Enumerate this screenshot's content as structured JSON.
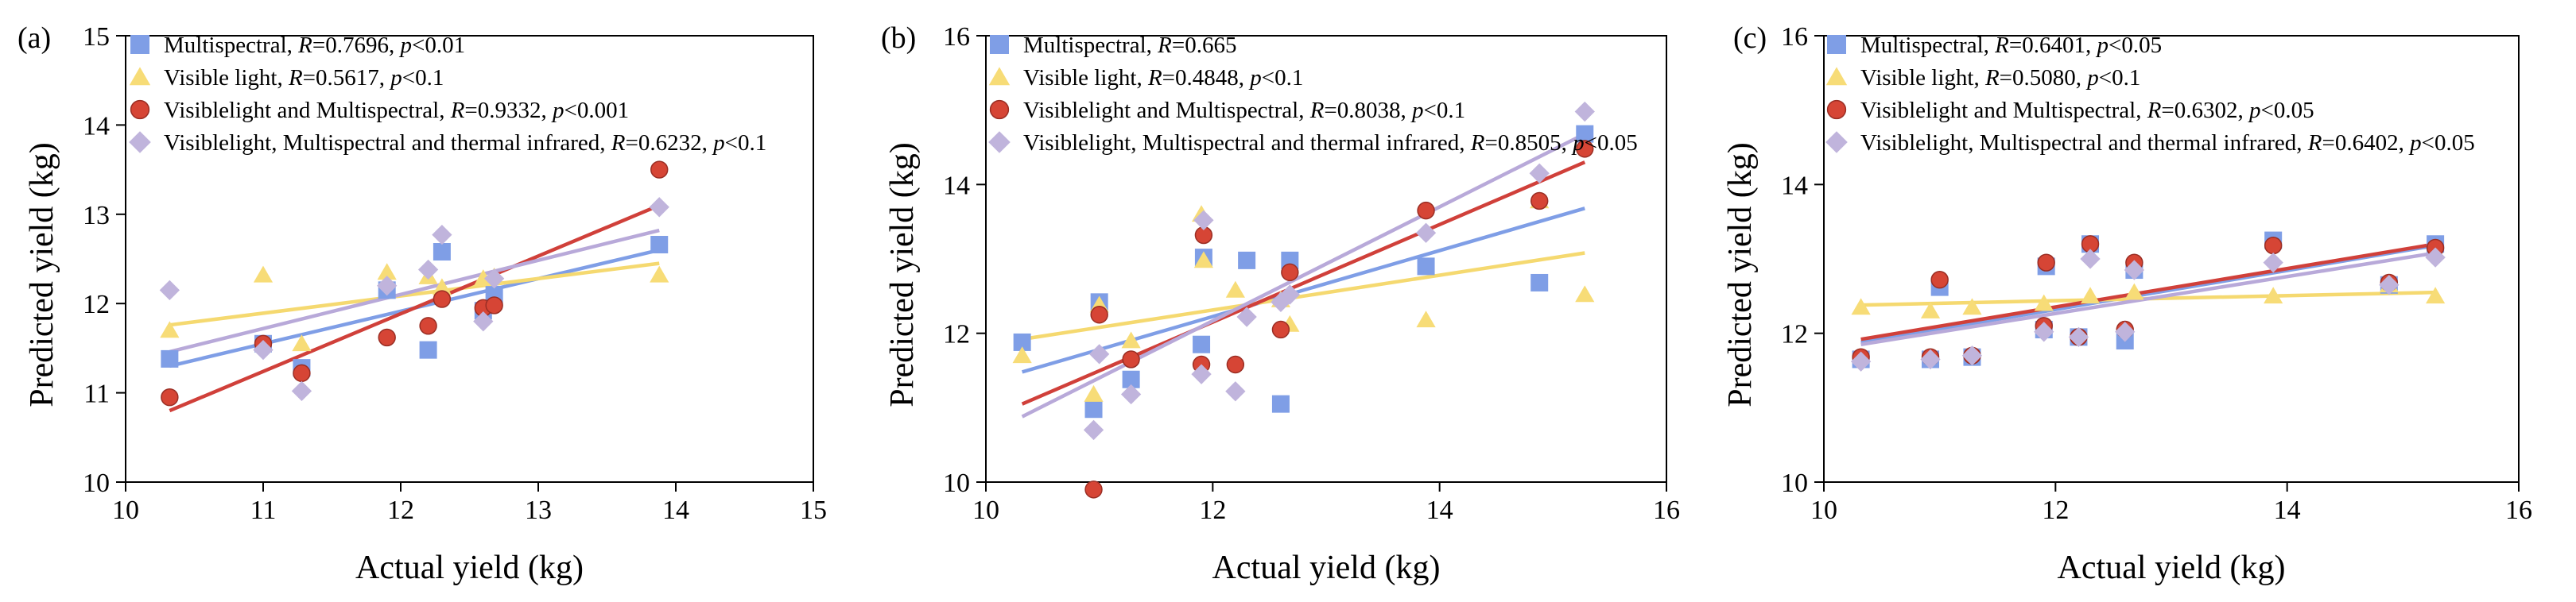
{
  "chart_data": [
    {
      "type": "scatter",
      "panel_label": "(a)",
      "xlabel": "Actual yield (kg)",
      "ylabel": "Predicted yield (kg)",
      "xlim": [
        10,
        15
      ],
      "ylim": [
        10,
        15
      ],
      "xticks": [
        10,
        11,
        12,
        13,
        14,
        15
      ],
      "yticks": [
        10,
        11,
        12,
        13,
        14,
        15
      ],
      "legend_position": "top-left",
      "series": [
        {
          "name": "Multispectral",
          "R": "0.7696",
          "p": "<0.01",
          "color": "#7f9ee6",
          "marker": "square",
          "x": [
            10.32,
            11.0,
            11.28,
            11.9,
            12.2,
            12.3,
            12.6,
            12.68,
            13.88
          ],
          "y": [
            11.38,
            11.55,
            11.28,
            12.15,
            11.48,
            12.58,
            11.92,
            12.1,
            12.66
          ],
          "fit": [
            [
              10.32,
              11.3
            ],
            [
              13.88,
              12.6
            ]
          ]
        },
        {
          "name": "Visible light",
          "R": "0.5617",
          "p": "<0.1",
          "color": "#f7dc77",
          "marker": "triangle",
          "x": [
            10.32,
            11.0,
            11.28,
            11.9,
            12.2,
            12.3,
            12.6,
            12.68,
            13.88
          ],
          "y": [
            11.7,
            12.32,
            11.55,
            12.35,
            12.3,
            12.18,
            12.28,
            12.3,
            12.32
          ],
          "fit": [
            [
              10.32,
              11.76
            ],
            [
              13.88,
              12.45
            ]
          ]
        },
        {
          "name": "Visiblelight and Multispectral",
          "R": "0.9332",
          "p": "<0.001",
          "color": "#d64535",
          "marker": "circle",
          "x": [
            10.32,
            11.0,
            11.28,
            11.9,
            12.2,
            12.3,
            12.6,
            12.68,
            13.88
          ],
          "y": [
            10.95,
            11.55,
            11.22,
            11.62,
            11.75,
            12.05,
            11.95,
            11.98,
            13.5
          ],
          "fit": [
            [
              10.32,
              10.8
            ],
            [
              13.88,
              13.1
            ]
          ]
        },
        {
          "name": "Visiblelight, Multispectral and thermal infrared",
          "R": "0.6232",
          "p": "<0.1",
          "color": "#c0b4dc",
          "marker": "diamond",
          "x": [
            10.32,
            11.0,
            11.28,
            11.9,
            12.2,
            12.3,
            12.6,
            12.68,
            13.88
          ],
          "y": [
            12.15,
            11.48,
            11.02,
            12.2,
            12.38,
            12.77,
            11.8,
            12.28,
            13.08
          ],
          "fit": [
            [
              10.32,
              11.46
            ],
            [
              13.88,
              12.82
            ]
          ]
        }
      ]
    },
    {
      "type": "scatter",
      "panel_label": "(b)",
      "xlabel": "Actual yield (kg)",
      "ylabel": "Predicted yield (kg)",
      "xlim": [
        10,
        16
      ],
      "ylim": [
        10,
        16
      ],
      "xticks": [
        10,
        12,
        14,
        16
      ],
      "yticks": [
        10,
        12,
        14,
        16
      ],
      "legend_position": "top-left",
      "series": [
        {
          "name": "Multispectral",
          "R": "0.665",
          "p": "",
          "color": "#7f9ee6",
          "marker": "square",
          "x": [
            10.32,
            10.95,
            11.0,
            11.28,
            11.9,
            11.92,
            12.3,
            12.6,
            12.68,
            13.88,
            14.88,
            15.28
          ],
          "y": [
            11.88,
            10.98,
            12.42,
            11.38,
            11.85,
            13.02,
            12.98,
            11.05,
            12.98,
            12.9,
            12.68,
            14.68
          ],
          "fit": [
            [
              10.32,
              11.48
            ],
            [
              15.28,
              13.68
            ]
          ]
        },
        {
          "name": "Visible light",
          "R": "0.4848",
          "p": "<0.1",
          "color": "#f7dc77",
          "marker": "triangle",
          "x": [
            10.32,
            10.95,
            11.0,
            11.28,
            11.9,
            11.92,
            12.2,
            12.6,
            12.68,
            13.88,
            14.88,
            15.28
          ],
          "y": [
            11.7,
            11.18,
            12.38,
            11.9,
            13.6,
            12.98,
            12.58,
            12.45,
            12.12,
            12.18,
            13.78,
            12.52
          ],
          "fit": [
            [
              10.32,
              11.92
            ],
            [
              15.28,
              13.08
            ]
          ]
        },
        {
          "name": "Visiblelight and Multispectral",
          "R": "0.8038",
          "p": "<0.1",
          "color": "#d64535",
          "marker": "circle",
          "x": [
            10.95,
            11.0,
            11.28,
            11.9,
            11.92,
            12.2,
            12.6,
            12.68,
            13.88,
            14.88,
            15.28
          ],
          "y": [
            9.9,
            12.25,
            11.65,
            11.58,
            13.32,
            11.58,
            12.05,
            12.82,
            13.65,
            13.78,
            14.48
          ],
          "fit": [
            [
              10.32,
              11.05
            ],
            [
              15.28,
              14.3
            ]
          ]
        },
        {
          "name": "Visiblelight, Multispectral and thermal infrared",
          "R": "0.8505",
          "p": "<0.05",
          "color": "#c0b4dc",
          "marker": "diamond",
          "x": [
            10.95,
            11.0,
            11.28,
            11.9,
            11.92,
            12.2,
            12.3,
            12.6,
            12.68,
            13.88,
            14.88,
            15.28
          ],
          "y": [
            10.7,
            11.72,
            11.18,
            11.45,
            13.52,
            11.22,
            12.22,
            12.42,
            12.52,
            13.35,
            14.15,
            14.98
          ],
          "fit": [
            [
              10.32,
              10.88
            ],
            [
              15.28,
              14.68
            ]
          ]
        }
      ]
    },
    {
      "type": "scatter",
      "panel_label": "(c)",
      "xlabel": "Actual yield (kg)",
      "ylabel": "Predicted yield (kg)",
      "xlim": [
        10,
        16
      ],
      "ylim": [
        10,
        16
      ],
      "xticks": [
        10,
        12,
        14,
        16
      ],
      "yticks": [
        10,
        12,
        14,
        16
      ],
      "legend_position": "top-left",
      "series": [
        {
          "name": "Multispectral",
          "R": "0.6401",
          "p": "<0.05",
          "color": "#7f9ee6",
          "marker": "square",
          "x": [
            10.32,
            10.92,
            11.0,
            11.28,
            11.9,
            11.92,
            12.2,
            12.3,
            12.6,
            12.68,
            13.88,
            14.88,
            15.28
          ],
          "y": [
            11.65,
            11.65,
            12.62,
            11.68,
            12.05,
            12.9,
            11.95,
            13.2,
            11.9,
            12.85,
            13.25,
            12.65,
            13.2
          ],
          "fit": [
            [
              10.32,
              11.88
            ],
            [
              15.28,
              13.18
            ]
          ]
        },
        {
          "name": "Visible light",
          "R": "0.5080",
          "p": "<0.1",
          "color": "#f7dc77",
          "marker": "triangle",
          "x": [
            10.32,
            10.92,
            11.28,
            11.9,
            12.3,
            12.68,
            13.88,
            14.88,
            15.28
          ],
          "y": [
            12.35,
            12.3,
            12.35,
            12.4,
            12.5,
            12.55,
            12.5,
            12.65,
            12.5
          ],
          "fit": [
            [
              10.32,
              12.38
            ],
            [
              15.28,
              12.55
            ]
          ]
        },
        {
          "name": "Visiblelight and Multispectral",
          "R": "0.6302",
          "p": "<0.05",
          "color": "#d64535",
          "marker": "circle",
          "x": [
            10.32,
            10.92,
            11.0,
            11.28,
            11.9,
            11.92,
            12.2,
            12.3,
            12.6,
            12.68,
            13.88,
            14.88,
            15.28
          ],
          "y": [
            11.68,
            11.68,
            12.72,
            11.7,
            12.1,
            12.95,
            11.95,
            13.2,
            12.05,
            12.95,
            13.18,
            12.68,
            13.15
          ],
          "fit": [
            [
              10.32,
              11.92
            ],
            [
              15.28,
              13.2
            ]
          ]
        },
        {
          "name": "Visiblelight, Multispectral and thermal infrared",
          "R": "0.6402",
          "p": "<0.05",
          "color": "#c0b4dc",
          "marker": "diamond",
          "x": [
            10.32,
            10.92,
            11.28,
            11.9,
            12.2,
            12.3,
            12.6,
            12.68,
            13.88,
            14.88,
            15.28
          ],
          "y": [
            11.62,
            11.65,
            11.7,
            12.02,
            11.95,
            13.0,
            12.02,
            12.85,
            12.95,
            12.65,
            13.02
          ],
          "fit": [
            [
              10.32,
              11.85
            ],
            [
              15.28,
              13.08
            ]
          ]
        }
      ]
    }
  ]
}
